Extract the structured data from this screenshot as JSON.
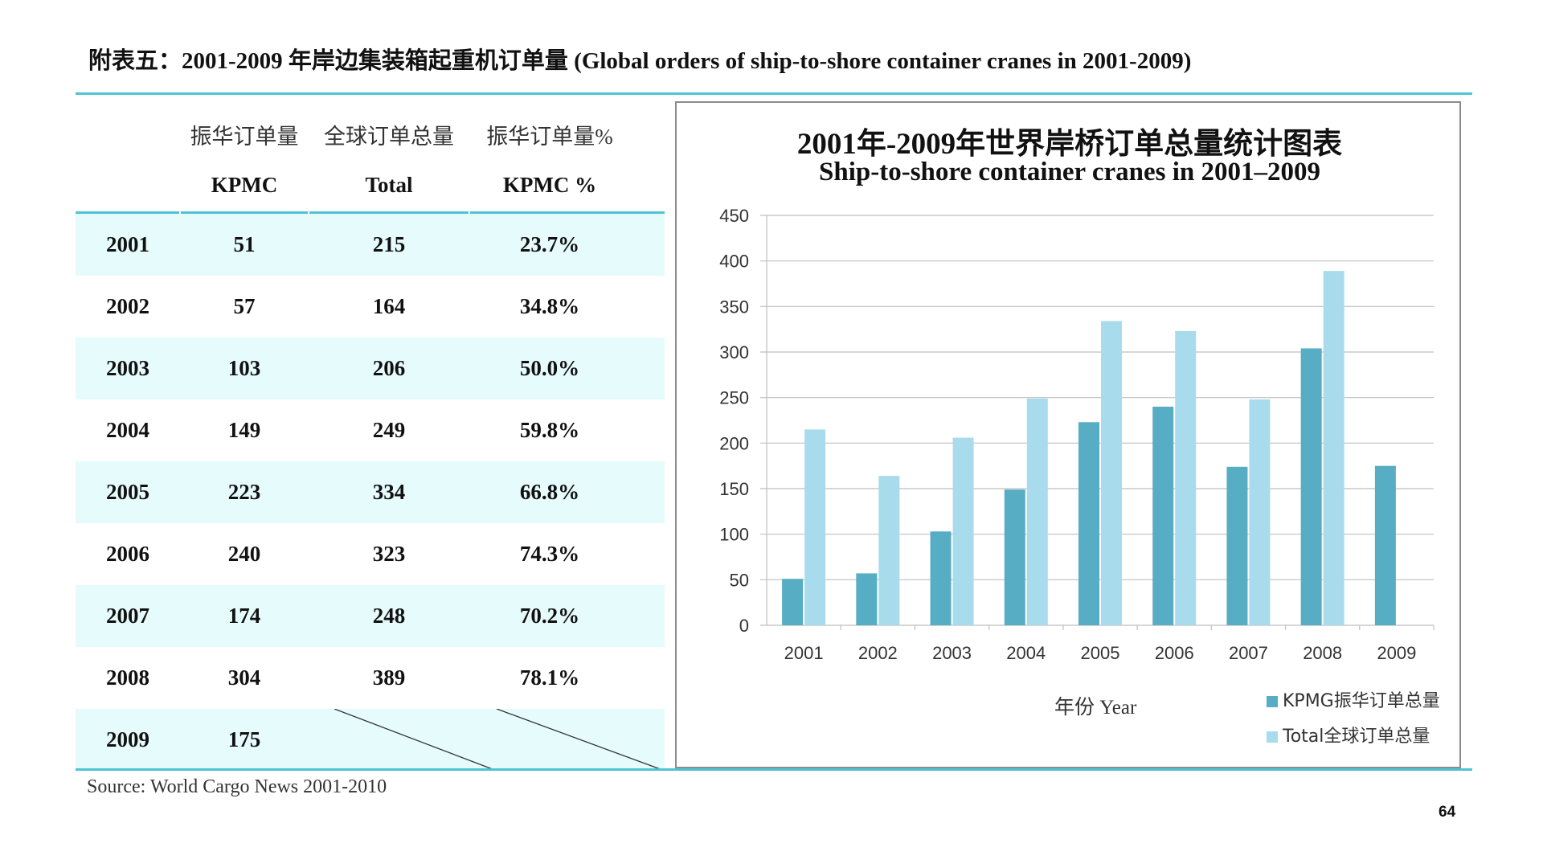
{
  "page": {
    "title": "附表五：2001-2009 年岸边集装箱起重机订单量 (Global orders of ship-to-shore container cranes in 2001-2009)",
    "source": "Source: World Cargo News 2001-2010",
    "page_number": "64"
  },
  "table": {
    "headers_zh": [
      "",
      "振华订单量",
      "全球订单总量",
      "振华订单量%"
    ],
    "headers_en": [
      "",
      "KPMC",
      "Total",
      "KPMC %"
    ],
    "rows": [
      {
        "year": "2001",
        "kpmc": "51",
        "total": "215",
        "pct": "23.7%"
      },
      {
        "year": "2002",
        "kpmc": "57",
        "total": "164",
        "pct": "34.8%"
      },
      {
        "year": "2003",
        "kpmc": "103",
        "total": "206",
        "pct": "50.0%"
      },
      {
        "year": "2004",
        "kpmc": "149",
        "total": "249",
        "pct": "59.8%"
      },
      {
        "year": "2005",
        "kpmc": "223",
        "total": "334",
        "pct": "66.8%"
      },
      {
        "year": "2006",
        "kpmc": "240",
        "total": "323",
        "pct": "74.3%"
      },
      {
        "year": "2007",
        "kpmc": "174",
        "total": "248",
        "pct": "70.2%"
      },
      {
        "year": "2008",
        "kpmc": "304",
        "total": "389",
        "pct": "78.1%"
      },
      {
        "year": "2009",
        "kpmc": "175",
        "total": "",
        "pct": ""
      }
    ]
  },
  "chart_data": {
    "type": "bar",
    "title": "2001年-2009年世界岸桥订单总量统计图表",
    "subtitle": "Ship-to-shore container cranes in 2001–2009",
    "xlabel": "年份 Year",
    "ylabel": "",
    "categories": [
      "2001",
      "2002",
      "2003",
      "2004",
      "2005",
      "2006",
      "2007",
      "2008",
      "2009"
    ],
    "series": [
      {
        "name": "KPMG振华订单总量",
        "color": "#56adc4",
        "values": [
          51,
          57,
          103,
          149,
          223,
          240,
          174,
          304,
          175
        ]
      },
      {
        "name": "Total全球订单总量",
        "color": "#a8dcec",
        "values": [
          215,
          164,
          206,
          249,
          334,
          323,
          248,
          389,
          null
        ]
      }
    ],
    "ylim": [
      0,
      450
    ],
    "yticks": [
      0,
      50,
      100,
      150,
      200,
      250,
      300,
      350,
      400,
      450
    ],
    "grid": true,
    "legend_position": "bottom-right"
  },
  "colors": {
    "accent_rule": "#4fc3d4",
    "row_shade": "#e6fbfc",
    "grid": "#bfbfbf",
    "frame": "#8c8c8c"
  }
}
